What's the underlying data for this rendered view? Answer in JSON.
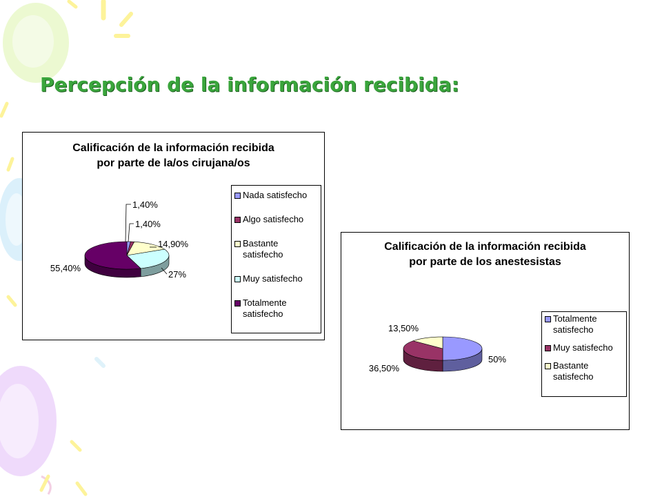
{
  "slide": {
    "title": "Percepción de la información recibida:"
  },
  "chart_data": [
    {
      "type": "pie",
      "title": [
        "Calificación de la información recibida",
        "por parte de la/os cirujana/os"
      ],
      "categories": [
        "Nada satisfecho",
        "Algo satisfecho",
        "Bastante satisfecho",
        "Muy satisfecho",
        "Totalmente satisfecho"
      ],
      "legend_lines": [
        [
          "Nada satisfecho"
        ],
        [
          "Algo satisfecho"
        ],
        [
          "Bastante",
          "satisfecho"
        ],
        [
          "Muy satisfecho"
        ],
        [
          "Totalmente",
          "satisfecho"
        ]
      ],
      "values": [
        1.4,
        1.4,
        14.9,
        27,
        55.4
      ],
      "value_labels": [
        "1,40%",
        "1,40%",
        "14,90%",
        "27%",
        "55,40%"
      ],
      "colors": [
        "#9999ff",
        "#993366",
        "#ffffcc",
        "#ccffff",
        "#660066"
      ],
      "legend_position": "right",
      "style": "3d"
    },
    {
      "type": "pie",
      "title": [
        "Calificación de la información recibida",
        "por parte de los anestesistas"
      ],
      "categories": [
        "Totalmente satisfecho",
        "Muy satisfecho",
        "Bastante satisfecho"
      ],
      "legend_lines": [
        [
          "Totalmente",
          "satisfecho"
        ],
        [
          "Muy satisfecho"
        ],
        [
          "Bastante",
          "satisfecho"
        ]
      ],
      "values": [
        50,
        36.5,
        13.5
      ],
      "value_labels": [
        "50%",
        "36,50%",
        "13,50%"
      ],
      "colors": [
        "#9999ff",
        "#993366",
        "#ffffcc"
      ],
      "legend_position": "right",
      "style": "3d"
    }
  ]
}
